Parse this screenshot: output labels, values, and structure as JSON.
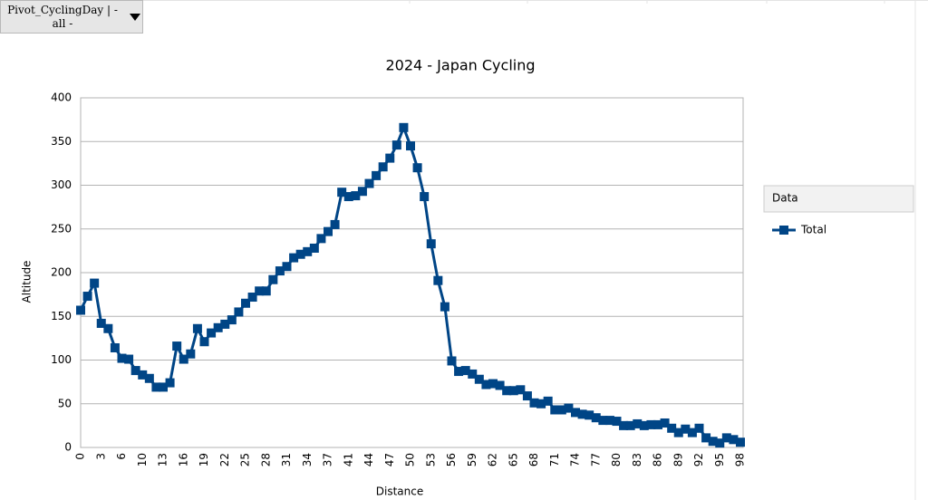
{
  "pivot_button": {
    "label": "Pivot_CyclingDay | - all -"
  },
  "chart_data": {
    "type": "line",
    "title": "2024 - Japan Cycling",
    "x_label": "Distance",
    "y_label": "Altitude",
    "categories": [
      "0",
      null,
      null,
      "3",
      null,
      null,
      "6",
      null,
      null,
      "10",
      null,
      null,
      "13",
      null,
      null,
      "16",
      null,
      null,
      "19",
      null,
      null,
      "22",
      null,
      null,
      "25",
      null,
      null,
      "28",
      null,
      null,
      "31",
      null,
      null,
      "34",
      null,
      null,
      "37",
      null,
      null,
      "41",
      null,
      null,
      "44",
      null,
      null,
      "47",
      null,
      null,
      "50",
      null,
      null,
      "53",
      null,
      null,
      "56",
      null,
      null,
      "59",
      null,
      null,
      "62",
      null,
      null,
      "65",
      null,
      null,
      "68",
      null,
      null,
      "71",
      null,
      null,
      "74",
      null,
      null,
      "77",
      null,
      null,
      "80",
      null,
      null,
      "83",
      null,
      null,
      "86",
      null,
      null,
      "89",
      null,
      null,
      "92",
      null,
      null,
      "95",
      null,
      null,
      "98"
    ],
    "series": [
      {
        "name": "Total",
        "color": "#004586",
        "values": [
          157,
          173,
          188,
          142,
          136,
          114,
          102,
          101,
          88,
          83,
          79,
          69,
          69,
          74,
          116,
          101,
          107,
          136,
          121,
          131,
          137,
          141,
          146,
          155,
          165,
          172,
          179,
          179,
          192,
          202,
          207,
          217,
          221,
          224,
          228,
          239,
          247,
          255,
          292,
          287,
          288,
          293,
          302,
          311,
          321,
          331,
          346,
          366,
          345,
          320,
          287,
          233,
          191,
          161,
          99,
          87,
          88,
          84,
          78,
          72,
          73,
          71,
          65,
          65,
          66,
          59,
          51,
          50,
          53,
          43,
          43,
          45,
          40,
          38,
          37,
          34,
          31,
          31,
          30,
          25,
          25,
          27,
          25,
          26,
          26,
          28,
          22,
          17,
          21,
          17,
          22,
          11,
          7,
          5,
          11,
          9,
          6
        ]
      }
    ],
    "legend_title": "Data",
    "legend": "right",
    "ylim": [
      0,
      400
    ],
    "yticks": [
      0,
      50,
      100,
      150,
      200,
      250,
      300,
      350,
      400
    ],
    "grid": true
  }
}
